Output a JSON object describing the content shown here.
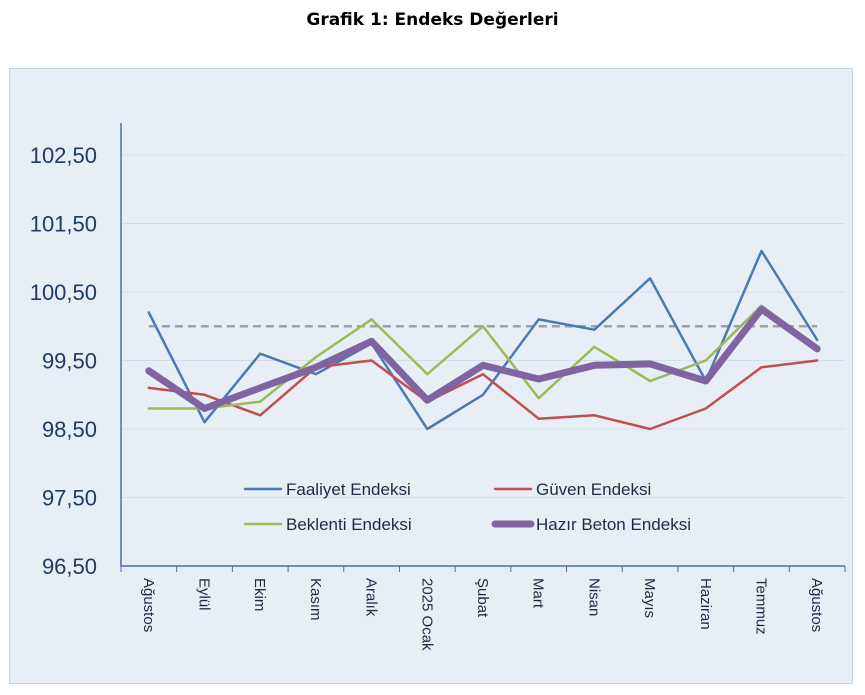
{
  "chart_data": {
    "type": "line",
    "title": "Grafik 1: Endeks Değerleri",
    "categories": [
      "Ağustos",
      "Eylül",
      "Ekim",
      "Kasım",
      "Aralık",
      "2025 Ocak",
      "Şubat",
      "Mart",
      "Nisan",
      "Mayıs",
      "Haziran",
      "Temmuz",
      "Ağustos"
    ],
    "yticks": [
      "96,50",
      "97,50",
      "98,50",
      "99,50",
      "100,50",
      "101,50",
      "102,50"
    ],
    "ylim": [
      96.5,
      103.0
    ],
    "grid": true,
    "reference_line": 100.0,
    "legend_position": "bottom-center inside plot",
    "series": [
      {
        "name": "Faaliyet Endeksi",
        "color": "#4a7ab5",
        "values": [
          100.2,
          98.6,
          99.6,
          99.3,
          99.75,
          98.5,
          99.0,
          100.1,
          99.95,
          100.7,
          99.2,
          101.1,
          99.8
        ]
      },
      {
        "name": "Güven Endeksi",
        "color": "#c0504d",
        "values": [
          99.1,
          99.0,
          98.7,
          99.4,
          99.5,
          98.9,
          99.3,
          98.65,
          98.7,
          98.5,
          98.8,
          99.4,
          99.5
        ]
      },
      {
        "name": "Beklenti Endeksi",
        "color": "#9bbb59",
        "values": [
          98.8,
          98.8,
          98.9,
          99.55,
          100.1,
          99.3,
          100.0,
          98.95,
          99.7,
          99.2,
          99.5,
          100.3,
          99.7
        ]
      },
      {
        "name": "Hazır Beton Endeksi",
        "color": "#8064a2",
        "values": [
          99.35,
          98.8,
          99.1,
          99.4,
          99.78,
          98.92,
          99.43,
          99.23,
          99.43,
          99.45,
          99.2,
          100.25,
          99.67
        ]
      }
    ]
  }
}
